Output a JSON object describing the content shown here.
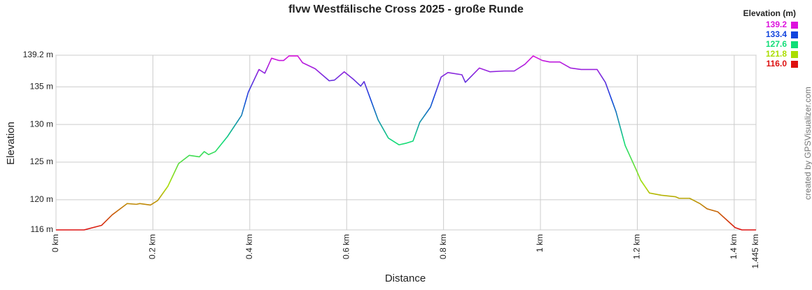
{
  "chart_data": {
    "type": "line",
    "title": "flvw Westfälische Cross 2025 - große Runde",
    "xlabel": "Distance",
    "ylabel": "Elevation",
    "credit": "created by GPSVisualizer.com",
    "x": [
      0,
      0.058,
      0.094,
      0.116,
      0.147,
      0.166,
      0.173,
      0.195,
      0.21,
      0.231,
      0.253,
      0.275,
      0.296,
      0.306,
      0.315,
      0.329,
      0.354,
      0.383,
      0.397,
      0.419,
      0.431,
      0.445,
      0.46,
      0.47,
      0.481,
      0.499,
      0.509,
      0.535,
      0.564,
      0.575,
      0.595,
      0.614,
      0.629,
      0.636,
      0.665,
      0.686,
      0.708,
      0.722,
      0.737,
      0.751,
      0.773,
      0.795,
      0.809,
      0.838,
      0.845,
      0.874,
      0.896,
      0.925,
      0.946,
      0.968,
      0.985,
      1.004,
      1.019,
      1.04,
      1.062,
      1.084,
      1.105,
      1.117,
      1.134,
      1.156,
      1.175,
      1.199,
      1.207,
      1.225,
      1.25,
      1.279,
      1.286,
      1.308,
      1.329,
      1.344,
      1.366,
      1.402,
      1.416,
      1.445
    ],
    "series": [
      {
        "name": "Elevation",
        "values": [
          116,
          116,
          116.6,
          118,
          119.5,
          119.4,
          119.5,
          119.3,
          119.9,
          121.8,
          124.8,
          125.9,
          125.7,
          126.4,
          126,
          126.4,
          128.4,
          131.2,
          134.3,
          137.3,
          136.8,
          138.8,
          138.5,
          138.5,
          139.1,
          139.1,
          138.2,
          137.4,
          135.8,
          135.9,
          137,
          136,
          135.1,
          135.7,
          130.6,
          128.2,
          127.3,
          127.5,
          127.8,
          130.3,
          132.3,
          136.3,
          136.9,
          136.6,
          135.6,
          137.5,
          137,
          137.1,
          137.1,
          138,
          139.1,
          138.5,
          138.3,
          138.3,
          137.5,
          137.3,
          137.3,
          137.3,
          135.6,
          131.7,
          127.2,
          123.8,
          122.6,
          120.9,
          120.6,
          120.4,
          120.2,
          120.2,
          119.5,
          118.8,
          118.4,
          116.3,
          116,
          116
        ]
      }
    ],
    "xlim": [
      0,
      1.445
    ],
    "ylim": [
      116,
      139.2
    ],
    "xticks": [
      {
        "value": 0,
        "label": "0 km"
      },
      {
        "value": 0.2,
        "label": "0.2 km"
      },
      {
        "value": 0.4,
        "label": "0.4 km"
      },
      {
        "value": 0.6,
        "label": "0.6 km"
      },
      {
        "value": 0.8,
        "label": "0.8 km"
      },
      {
        "value": 1,
        "label": "1 km"
      },
      {
        "value": 1.2,
        "label": "1.2 km"
      },
      {
        "value": 1.4,
        "label": "1.4 km"
      },
      {
        "value": 1.445,
        "label": "1.445 km"
      }
    ],
    "yticks": [
      {
        "value": 116,
        "label": "116 m"
      },
      {
        "value": 120,
        "label": "120 m"
      },
      {
        "value": 125,
        "label": "125 m"
      },
      {
        "value": 130,
        "label": "130 m"
      },
      {
        "value": 135,
        "label": "135 m"
      },
      {
        "value": 139.2,
        "label": "139.2 m"
      }
    ],
    "grid": true,
    "legend": {
      "title": "Elevation (m)",
      "position": "top-right",
      "entries": [
        {
          "value": 139.2,
          "color": "#dd11dd"
        },
        {
          "value": 133.4,
          "color": "#1144dd"
        },
        {
          "value": 127.6,
          "color": "#11dd77"
        },
        {
          "value": 121.8,
          "color": "#aadd00"
        },
        {
          "value": 116,
          "label": "116.0",
          "color": "#dd1111"
        }
      ]
    }
  }
}
